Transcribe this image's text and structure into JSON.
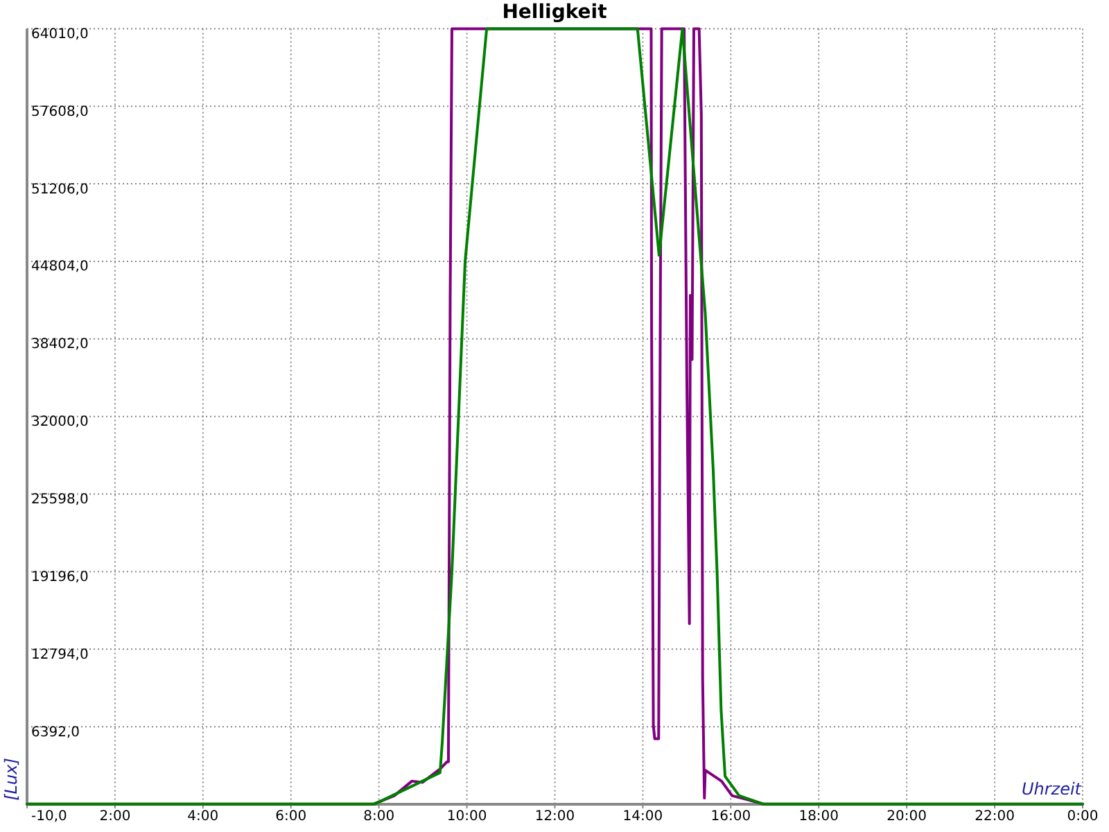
{
  "chart_data": {
    "type": "line",
    "title": "Helligkeit",
    "xlabel": "Uhrzeit",
    "ylabel": "[Lux]",
    "xlim": [
      0,
      24
    ],
    "ylim": [
      -10,
      64010
    ],
    "xticks": [
      {
        "value": 0,
        "label": null
      },
      {
        "value": 2,
        "label": "2:00"
      },
      {
        "value": 4,
        "label": "4:00"
      },
      {
        "value": 6,
        "label": "6:00"
      },
      {
        "value": 8,
        "label": "8:00"
      },
      {
        "value": 10,
        "label": "10:00"
      },
      {
        "value": 12,
        "label": "12:00"
      },
      {
        "value": 14,
        "label": "14:00"
      },
      {
        "value": 16,
        "label": "16:00"
      },
      {
        "value": 18,
        "label": "18:00"
      },
      {
        "value": 20,
        "label": "20:00"
      },
      {
        "value": 22,
        "label": "22:00"
      },
      {
        "value": 24,
        "label": "0:00"
      }
    ],
    "yticks": [
      {
        "value": -10,
        "label": "-10,0"
      },
      {
        "value": 6392,
        "label": "6392,0"
      },
      {
        "value": 12794,
        "label": "12794,0"
      },
      {
        "value": 19196,
        "label": "19196,0"
      },
      {
        "value": 25598,
        "label": "25598,0"
      },
      {
        "value": 32000,
        "label": "32000,0"
      },
      {
        "value": 38402,
        "label": "38402,0"
      },
      {
        "value": 44804,
        "label": "44804,0"
      },
      {
        "value": 51206,
        "label": "51206,0"
      },
      {
        "value": 57608,
        "label": "57608,0"
      },
      {
        "value": 64010,
        "label": "64010,0"
      }
    ],
    "grid": true,
    "line_style": "solid",
    "marker": "none",
    "series": [
      {
        "color": "#800080",
        "x": [
          0,
          7.87,
          8.35,
          8.75,
          8.99,
          9.39,
          9.55,
          9.58,
          9.62,
          9.66,
          14.19,
          14.2,
          14.24,
          14.27,
          14.36,
          14.4,
          14.43,
          14.94,
          15.0,
          15.06,
          15.08,
          15.12,
          15.16,
          15.28,
          15.33,
          15.36,
          15.4,
          15.42,
          15.79,
          16.03,
          16.35,
          16.75,
          24
        ],
        "values": [
          0,
          0,
          700,
          1900,
          1800,
          2900,
          3500,
          3500,
          41600,
          64010,
          64010,
          39200,
          6500,
          5400,
          5400,
          42900,
          64010,
          64010,
          35400,
          14900,
          42000,
          36700,
          64010,
          64010,
          56900,
          10400,
          500,
          2800,
          1900,
          700,
          400,
          0,
          0
        ]
      },
      {
        "color": "#008000",
        "x": [
          0,
          7.9,
          9.39,
          9.44,
          9.66,
          9.96,
          10.45,
          13.88,
          14.37,
          14.9,
          15.18,
          15.42,
          15.6,
          15.69,
          15.78,
          15.87,
          16.19,
          16.75,
          24
        ],
        "values": [
          0,
          0,
          2600,
          5100,
          19200,
          44800,
          64010,
          64010,
          45300,
          64010,
          51300,
          40500,
          27600,
          19000,
          7800,
          2300,
          700,
          0,
          0
        ]
      }
    ]
  }
}
